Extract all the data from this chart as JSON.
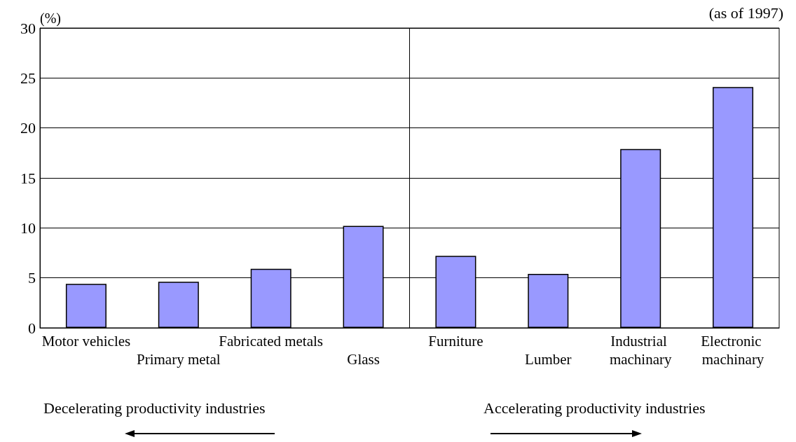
{
  "chart_data": {
    "type": "bar",
    "ylabel": "(%)",
    "categories": [
      "Motor vehicles",
      "Primary metal",
      "Fabricated metals",
      "Glass",
      "Furniture",
      "Lumber",
      "Industrial machinary",
      "Electronic machinary"
    ],
    "values": [
      4.4,
      4.6,
      5.9,
      10.2,
      7.2,
      5.4,
      17.9,
      24.1
    ],
    "color": "#9999ff",
    "ylim": [
      0,
      30
    ],
    "yticks": [
      0,
      5,
      10,
      15,
      20,
      25,
      30
    ],
    "grid": "y",
    "annotations": [
      "(as of 1997)",
      "Decelerating productivity industries",
      "Accelerating productivity industries"
    ]
  }
}
